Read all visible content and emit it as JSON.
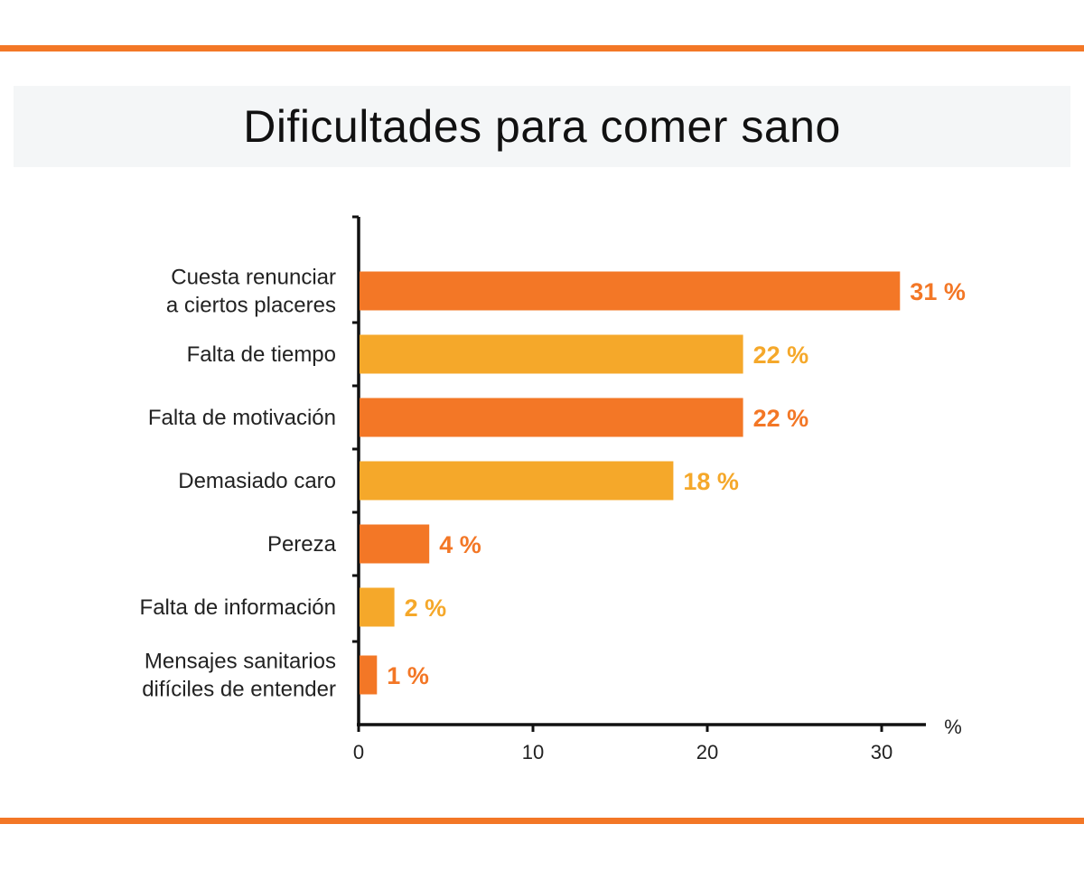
{
  "chart_data": {
    "type": "bar",
    "orientation": "horizontal",
    "title": "Dificultades para comer sano",
    "xlabel": "%",
    "ylabel": "",
    "categories": [
      [
        "Cuesta renunciar",
        "a ciertos placeres"
      ],
      [
        "Falta de tiempo"
      ],
      [
        "Falta de motivación"
      ],
      [
        "Demasiado caro"
      ],
      [
        "Pereza"
      ],
      [
        "Falta de información"
      ],
      [
        "Mensajes sanitarios",
        "difíciles de entender"
      ]
    ],
    "values": [
      31,
      22,
      22,
      18,
      4,
      2,
      1
    ],
    "value_labels": [
      "31 %",
      "22 %",
      "22 %",
      "18 %",
      "4 %",
      "2 %",
      "1 %"
    ],
    "xlim": [
      0,
      32
    ],
    "xticks": [
      0,
      10,
      20,
      30
    ],
    "grid": false,
    "colors": [
      "#F37726",
      "#F5A82A"
    ]
  },
  "colors": {
    "accent_rule": "#F37726",
    "title_band": "#F4F6F7"
  }
}
